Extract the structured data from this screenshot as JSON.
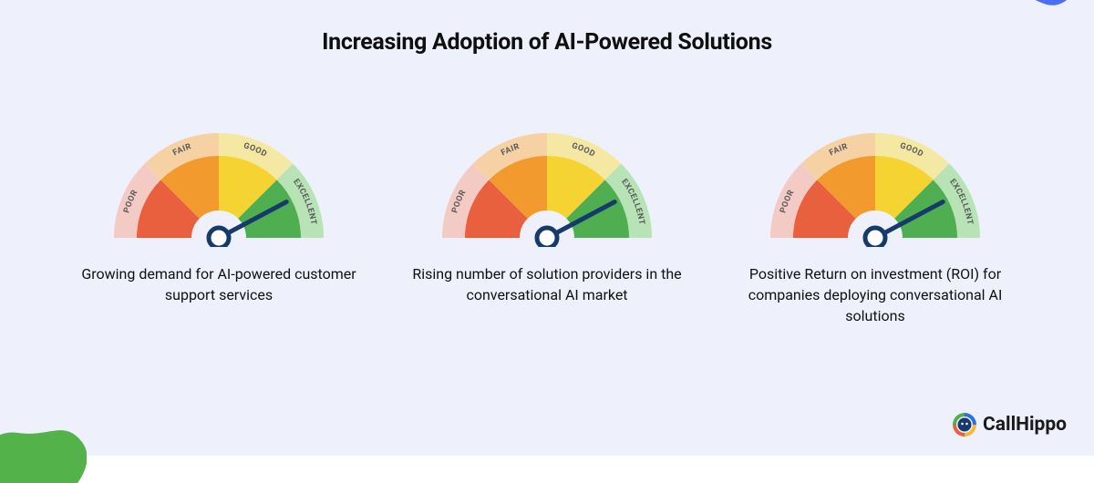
{
  "background_color": "#eef0fb",
  "title": {
    "text": "Increasing Adoption of AI-Powered Solutions",
    "font_size": 25,
    "font_weight": 700,
    "color": "#0f0f0f"
  },
  "gauge_style": {
    "segments": [
      {
        "label": "POOR",
        "outer_color": "#f4cbc4",
        "inner_color": "#e9603e"
      },
      {
        "label": "FAIR",
        "outer_color": "#f6d1a4",
        "inner_color": "#f39a2e"
      },
      {
        "label": "GOOD",
        "outer_color": "#f4e8a2",
        "inner_color": "#f4d333"
      },
      {
        "label": "EXCELLENT",
        "outer_color": "#b7e3b6",
        "inner_color": "#4fae4f"
      }
    ],
    "label_font_size": 9,
    "label_color": "#5b5b5b",
    "needle_color": "#163a6b",
    "needle_width": 5,
    "hub_outer_color": "#163a6b",
    "hub_inner_color": "#ffffff",
    "hub_radius": 11,
    "outer_radius": 115,
    "mid_radius": 90,
    "inner_radius": 30
  },
  "gauges": [
    {
      "needle_angle_deg": 152,
      "caption": "Growing demand for AI-powered customer support services"
    },
    {
      "needle_angle_deg": 152,
      "caption": "Rising number of solution providers in the conversational AI market"
    },
    {
      "needle_angle_deg": 152,
      "caption": "Positive Return on investment (ROI) for companies deploying conversational AI solutions"
    }
  ],
  "caption_style": {
    "font_size": 16,
    "color": "#111111"
  },
  "decor": {
    "top_right_color": "#4c6ef5",
    "bottom_left_color": "#54b24b"
  },
  "brand": {
    "name": "CallHippo",
    "text_color": "#1a1a1a",
    "logo_colors": {
      "ring_top": "#2f6fe0",
      "ring_right": "#f6b73c",
      "ring_bottom": "#e9603e",
      "ring_left": "#4fae4f",
      "face": "#163a6b"
    }
  }
}
